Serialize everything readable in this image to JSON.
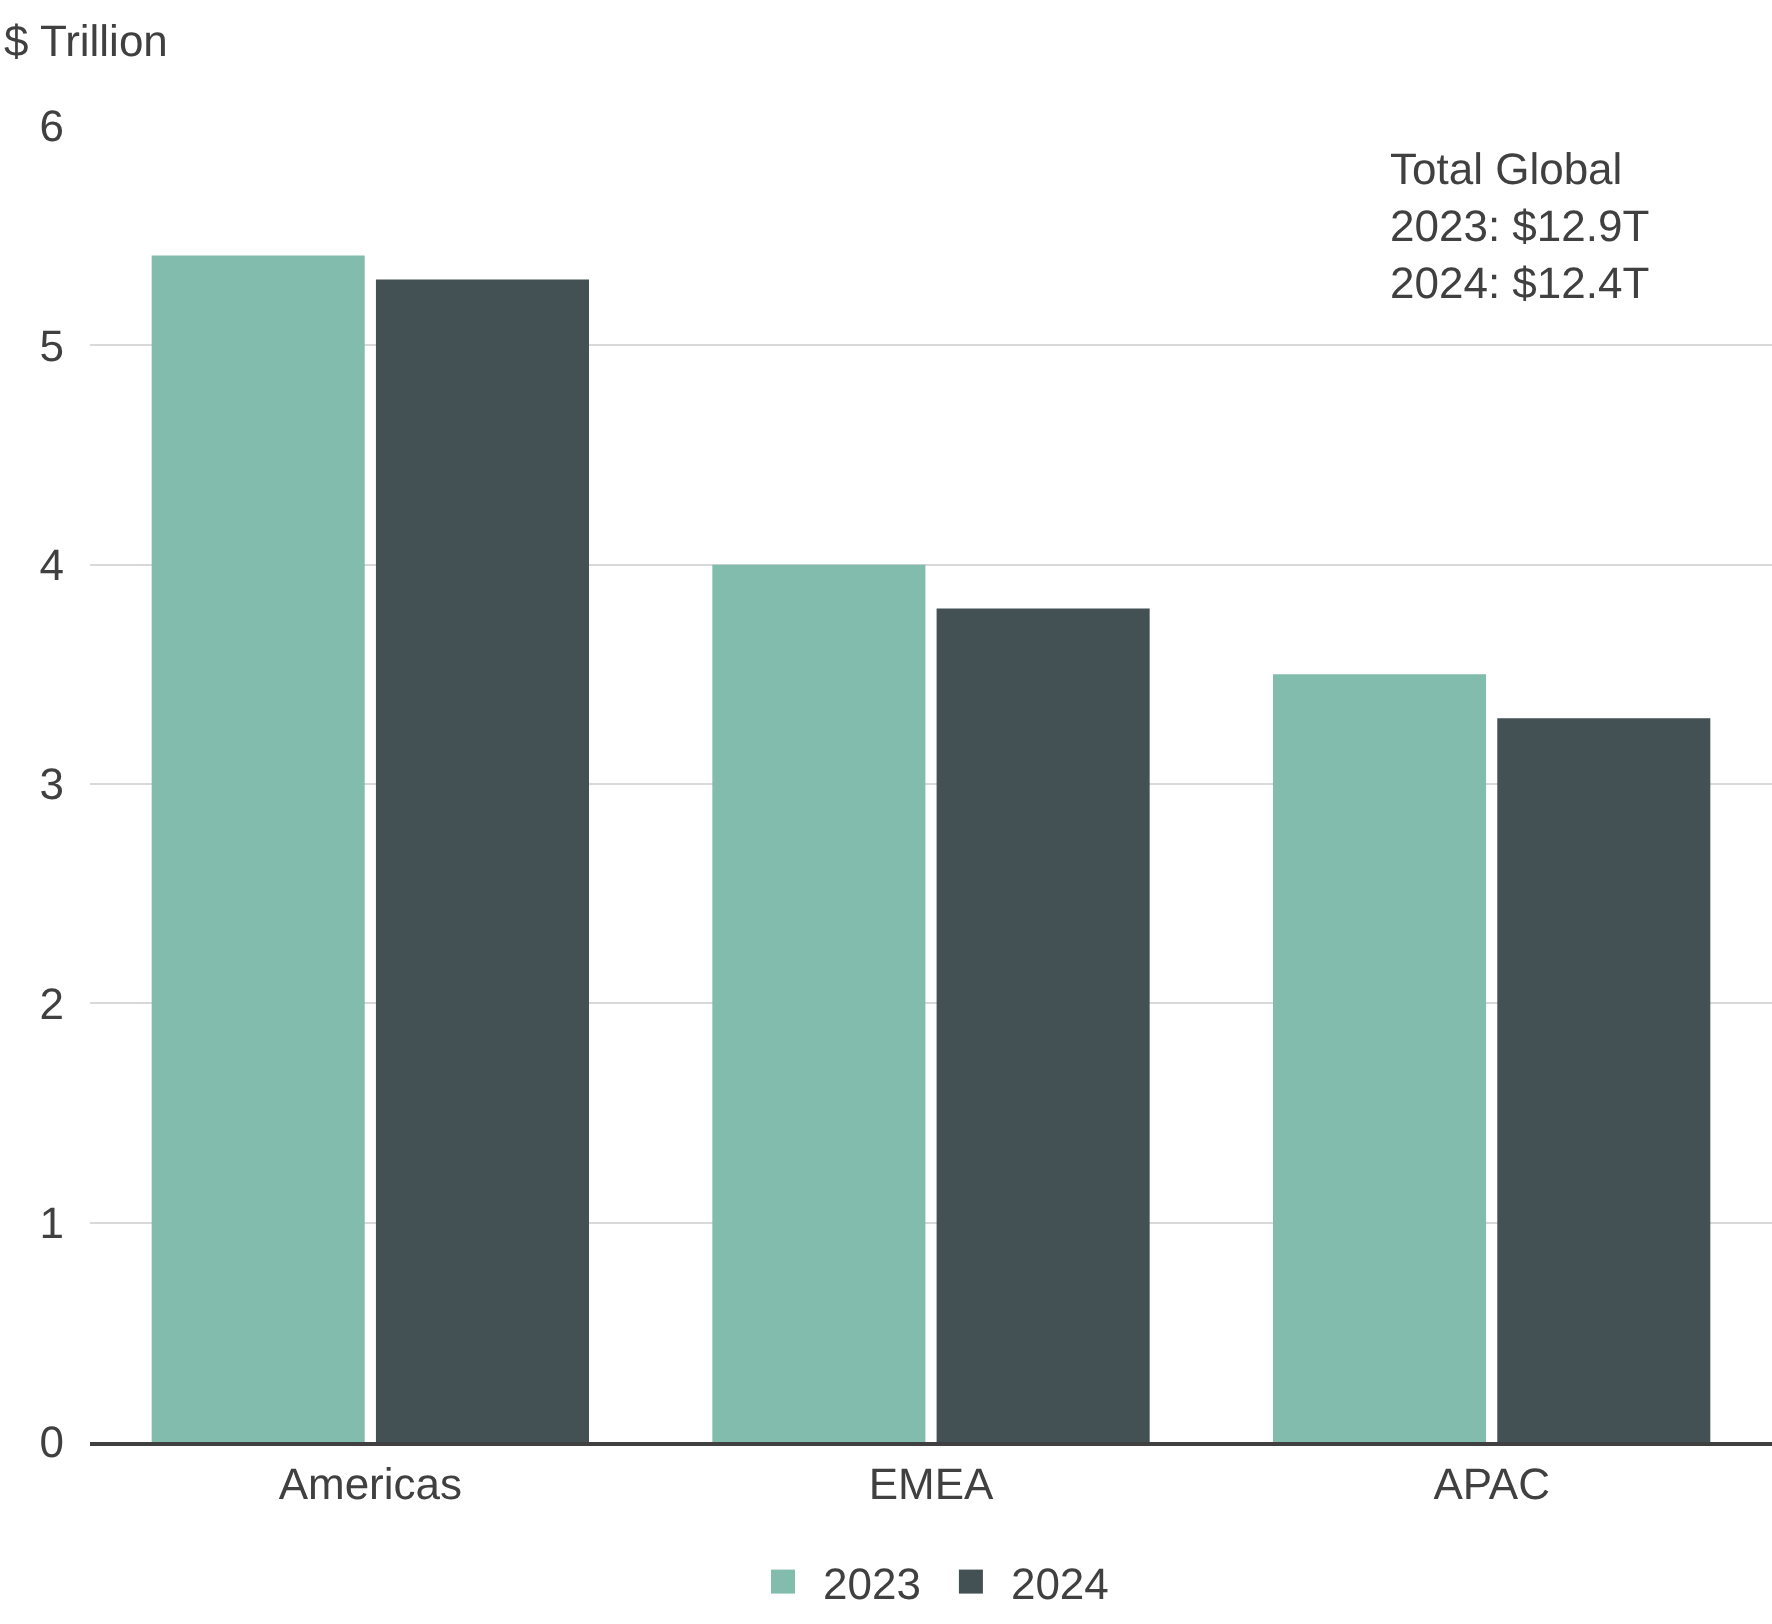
{
  "chart_data": {
    "type": "bar",
    "ylabel": "$ Trillion",
    "categories": [
      "Americas",
      "EMEA",
      "APAC"
    ],
    "series": [
      {
        "name": "2023",
        "color": "#82bcad",
        "values": [
          5.41,
          4.0,
          3.5
        ]
      },
      {
        "name": "2024",
        "color": "#435155",
        "values": [
          5.3,
          3.8,
          3.3
        ]
      }
    ],
    "ylim": [
      0,
      6
    ],
    "yticks": [
      0,
      1,
      2,
      3,
      4,
      5,
      6
    ],
    "grid": "y",
    "legend": "bottom",
    "annotations": [
      "Total Global\n2023: $12.9T\n2024: $12.4T"
    ]
  }
}
